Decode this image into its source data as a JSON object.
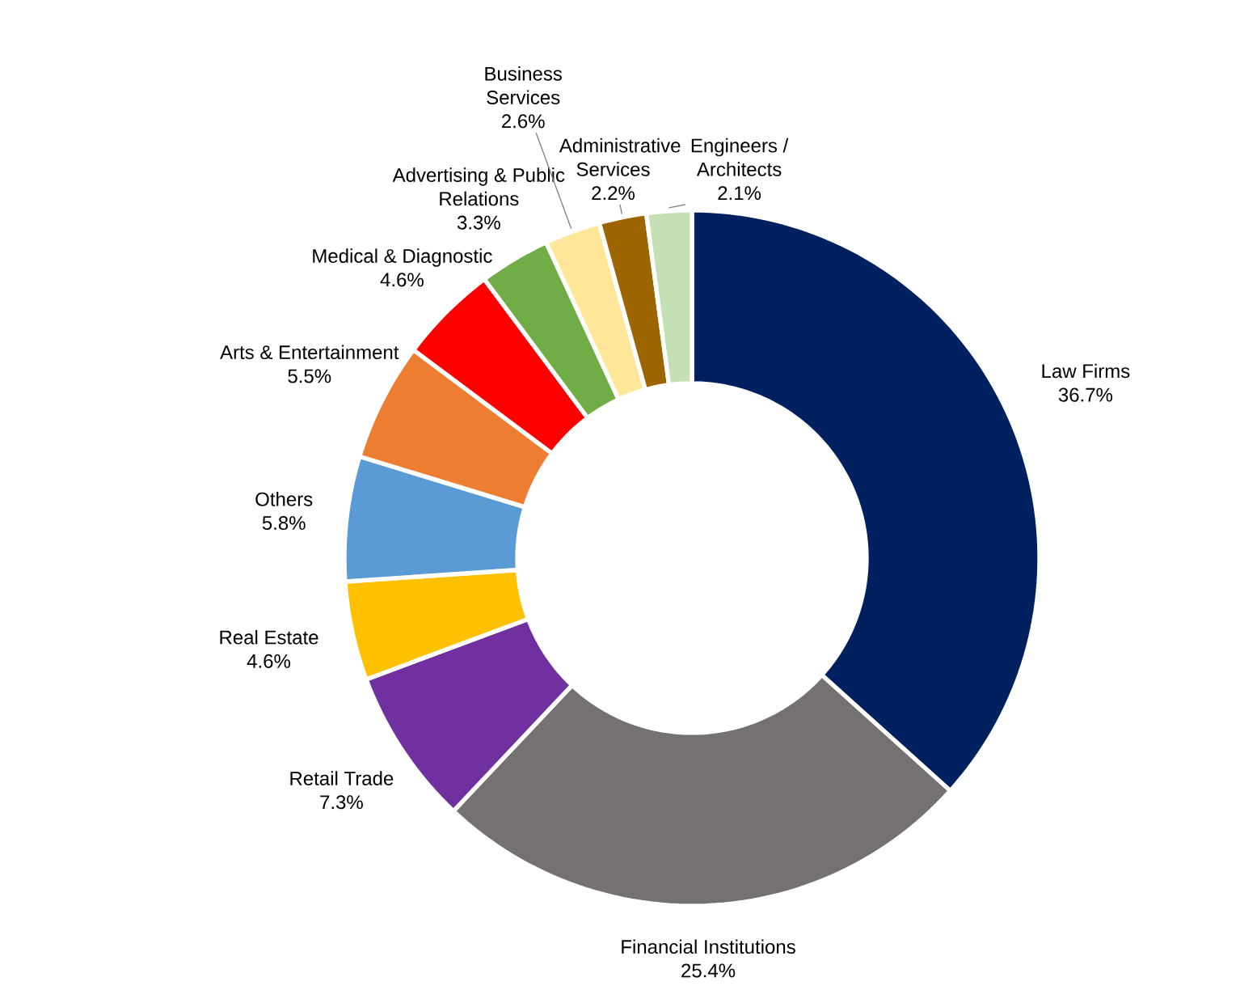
{
  "chart_data": {
    "type": "donut",
    "categories": [
      "Law Firms",
      "Financial Institutions",
      "Retail Trade",
      "Real Estate",
      "Others",
      "Arts & Entertainment",
      "Medical & Diagnostic",
      "Advertising & Public Relations",
      "Business Services",
      "Administrative Services",
      "Engineers / Architects"
    ],
    "values": [
      36.7,
      25.4,
      7.3,
      4.6,
      5.8,
      5.5,
      4.6,
      3.3,
      2.6,
      2.2,
      2.1
    ],
    "value_labels": [
      "36.7%",
      "25.4%",
      "7.3%",
      "4.6%",
      "5.8%",
      "5.5%",
      "4.6%",
      "3.3%",
      "2.6%",
      "2.2%",
      "2.1%"
    ],
    "colors": [
      "#002060",
      "#767171",
      "#7030a0",
      "#ffc000",
      "#5b9bd5",
      "#ed7d31",
      "#ff0000",
      "#70ad47",
      "#ffe699",
      "#9c6500",
      "#c5e0b4"
    ]
  }
}
